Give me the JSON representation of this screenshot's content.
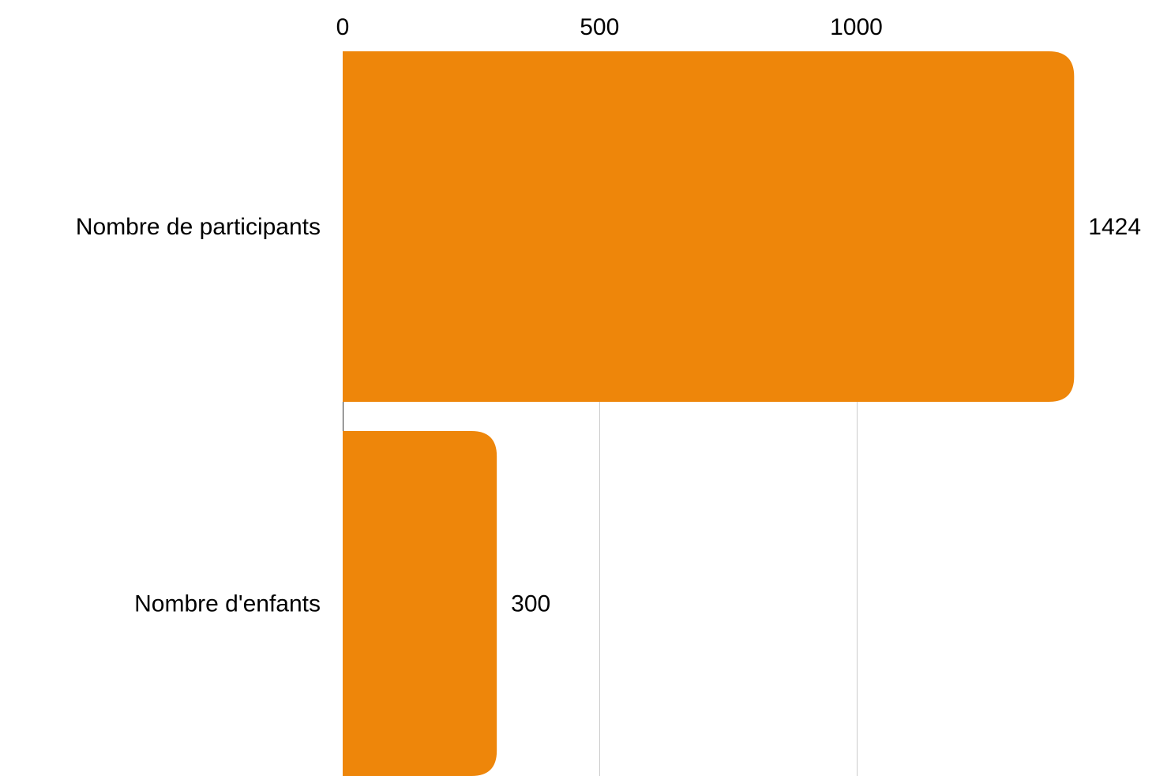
{
  "chart_data": {
    "type": "bar",
    "orientation": "horizontal",
    "title": "",
    "xlabel": "",
    "ylabel": "",
    "categories": [
      "Nombre de participants",
      "Nombre d'enfants"
    ],
    "values": [
      1424,
      300
    ],
    "value_labels": [
      "1424",
      "300"
    ],
    "x_ticks": [
      0,
      500,
      1000
    ],
    "x_tick_labels": [
      "0",
      "500",
      "1000"
    ],
    "xlim": [
      0,
      1500
    ],
    "axis_position": "top",
    "grid": true,
    "legend": "none",
    "colors": {
      "bar": "#EE860A",
      "grid": "#cccccc",
      "text": "#000000"
    }
  }
}
